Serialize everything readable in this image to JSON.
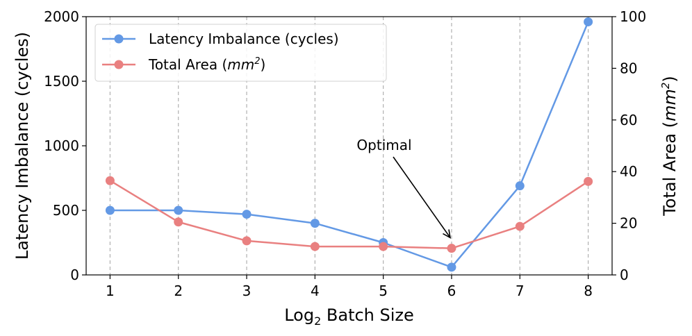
{
  "chart_data": {
    "type": "line",
    "title": "",
    "x": [
      1,
      2,
      3,
      4,
      5,
      6,
      7,
      8
    ],
    "xlabel_prefix": "Log",
    "xlabel_sub": "2",
    "xlabel_suffix": " Batch Size",
    "xlim": [
      0.65,
      8.35
    ],
    "ylabel": "Latency Imbalance (cycles)",
    "ylim": [
      0,
      2000
    ],
    "yticks": [
      0,
      500,
      1000,
      1500,
      2000
    ],
    "y2label_text": "Total Area (",
    "y2label_unit": "mm",
    "y2label_sup": "2",
    "y2label_close": ")",
    "y2lim": [
      0,
      100
    ],
    "y2ticks": [
      0,
      20,
      40,
      60,
      80,
      100
    ],
    "grid": "vertical-dashed",
    "legend_position": "top-left",
    "series": [
      {
        "name": "Latency Imbalance (cycles)",
        "axis": "left",
        "color": "#6399e5",
        "values": [
          500,
          500,
          470,
          400,
          250,
          60,
          690,
          1960
        ]
      },
      {
        "name": "Total Area (mm2)",
        "legend_text": "Total Area (",
        "legend_unit": "mm",
        "legend_sup": "2",
        "legend_close": ")",
        "axis": "right",
        "color": "#e98080",
        "values": [
          36.5,
          20.5,
          13.2,
          11.0,
          11.0,
          10.3,
          18.8,
          36.2
        ]
      }
    ],
    "annotation": {
      "text": "Optimal",
      "x": 6,
      "y2": 15.5
    }
  }
}
